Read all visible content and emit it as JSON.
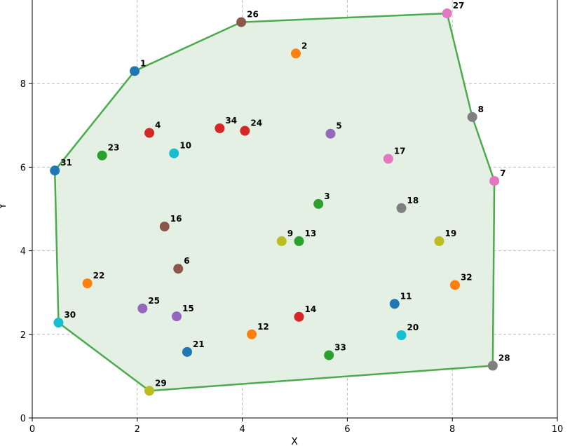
{
  "chart_data": {
    "type": "scatter",
    "title": "",
    "xlabel": "X",
    "ylabel": "Y",
    "xlim": [
      0,
      10
    ],
    "ylim": [
      0,
      10
    ],
    "xticks": [
      0,
      2,
      4,
      6,
      8,
      10
    ],
    "yticks": [
      0,
      2,
      4,
      6,
      8
    ],
    "grid": true,
    "hull": {
      "stroke": "#4daa4d",
      "fill": "#e3f0e3",
      "order": [
        1,
        26,
        27,
        8,
        7,
        28,
        29,
        30,
        31
      ]
    },
    "points": [
      {
        "id": 1,
        "label": "1",
        "x": 1.95,
        "y": 8.3,
        "color": "#1f77b4"
      },
      {
        "id": 2,
        "label": "2",
        "x": 5.02,
        "y": 8.72,
        "color": "#ff7f0e"
      },
      {
        "id": 3,
        "label": "3",
        "x": 5.45,
        "y": 5.12,
        "color": "#2ca02c"
      },
      {
        "id": 4,
        "label": "4",
        "x": 2.23,
        "y": 6.82,
        "color": "#d62728"
      },
      {
        "id": 5,
        "label": "5",
        "x": 5.68,
        "y": 6.8,
        "color": "#9467bd"
      },
      {
        "id": 6,
        "label": "6",
        "x": 2.78,
        "y": 3.57,
        "color": "#8c564b"
      },
      {
        "id": 7,
        "label": "7",
        "x": 8.8,
        "y": 5.67,
        "color": "#e377c2"
      },
      {
        "id": 8,
        "label": "8",
        "x": 8.38,
        "y": 7.2,
        "color": "#7f7f7f"
      },
      {
        "id": 9,
        "label": "9",
        "x": 4.75,
        "y": 4.23,
        "color": "#bcbd22"
      },
      {
        "id": 10,
        "label": "10",
        "x": 2.7,
        "y": 6.33,
        "color": "#17becf"
      },
      {
        "id": 11,
        "label": "11",
        "x": 6.9,
        "y": 2.73,
        "color": "#1f77b4"
      },
      {
        "id": 12,
        "label": "12",
        "x": 4.18,
        "y": 2.0,
        "color": "#ff7f0e"
      },
      {
        "id": 13,
        "label": "13",
        "x": 5.08,
        "y": 4.23,
        "color": "#2ca02c"
      },
      {
        "id": 14,
        "label": "14",
        "x": 5.08,
        "y": 2.42,
        "color": "#d62728"
      },
      {
        "id": 15,
        "label": "15",
        "x": 2.75,
        "y": 2.43,
        "color": "#9467bd"
      },
      {
        "id": 16,
        "label": "16",
        "x": 2.52,
        "y": 4.58,
        "color": "#8c564b"
      },
      {
        "id": 17,
        "label": "17",
        "x": 6.78,
        "y": 6.2,
        "color": "#e377c2"
      },
      {
        "id": 18,
        "label": "18",
        "x": 7.03,
        "y": 5.02,
        "color": "#7f7f7f"
      },
      {
        "id": 19,
        "label": "19",
        "x": 7.75,
        "y": 4.23,
        "color": "#bcbd22"
      },
      {
        "id": 20,
        "label": "20",
        "x": 7.03,
        "y": 1.98,
        "color": "#17becf"
      },
      {
        "id": 21,
        "label": "21",
        "x": 2.95,
        "y": 1.58,
        "color": "#1f77b4"
      },
      {
        "id": 22,
        "label": "22",
        "x": 1.05,
        "y": 3.22,
        "color": "#ff7f0e"
      },
      {
        "id": 23,
        "label": "23",
        "x": 1.33,
        "y": 6.28,
        "color": "#2ca02c"
      },
      {
        "id": 24,
        "label": "24",
        "x": 4.05,
        "y": 6.87,
        "color": "#d62728"
      },
      {
        "id": 25,
        "label": "25",
        "x": 2.1,
        "y": 2.62,
        "color": "#9467bd"
      },
      {
        "id": 26,
        "label": "26",
        "x": 3.98,
        "y": 9.47,
        "color": "#8c564b"
      },
      {
        "id": 27,
        "label": "27",
        "x": 7.9,
        "y": 9.68,
        "color": "#e377c2"
      },
      {
        "id": 28,
        "label": "28",
        "x": 8.77,
        "y": 1.25,
        "color": "#7f7f7f"
      },
      {
        "id": 29,
        "label": "29",
        "x": 2.23,
        "y": 0.65,
        "color": "#bcbd22"
      },
      {
        "id": 30,
        "label": "30",
        "x": 0.5,
        "y": 2.28,
        "color": "#17becf"
      },
      {
        "id": 31,
        "label": "31",
        "x": 0.43,
        "y": 5.92,
        "color": "#1f77b4"
      },
      {
        "id": 32,
        "label": "32",
        "x": 8.05,
        "y": 3.18,
        "color": "#ff7f0e"
      },
      {
        "id": 33,
        "label": "33",
        "x": 5.65,
        "y": 1.5,
        "color": "#2ca02c"
      },
      {
        "id": 34,
        "label": "34",
        "x": 3.57,
        "y": 6.93,
        "color": "#d62728"
      }
    ]
  }
}
